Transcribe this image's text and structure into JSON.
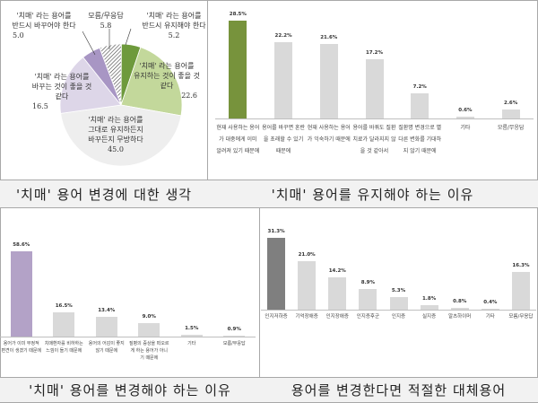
{
  "chart_data": [
    {
      "type": "pie",
      "title": "'치매' 용어 변경에 대한 생각",
      "unit": "%",
      "slices": [
        {
          "label": "'치매' 라는 용어를 반드시 유지해야 한다",
          "value": 5.2,
          "color": "#6e9a3c"
        },
        {
          "label": "'치매' 라는 용어를 유지하는 것이 좋을 것 같다",
          "value": 22.6,
          "color": "#c3d89b"
        },
        {
          "label": "'치매' 라는 용어를 그대로 유지하든지 바꾸든지 무방하다",
          "value": 45.0,
          "color": "#eeeeee"
        },
        {
          "label": "'치매' 라는 용어를 바꾸는 것이 좋을 것 같다",
          "value": 16.5,
          "color": "#ddd6e8"
        },
        {
          "label": "'치매' 라는 용어를 반드시 바꾸어야 한다",
          "value": 5.0,
          "color": "#a896c4"
        },
        {
          "label": "모름/무응답",
          "value": 5.8,
          "color": "hatched"
        }
      ]
    },
    {
      "type": "bar",
      "title": "'치매' 용어를 유지해야 하는 이유",
      "categories": [
        "현재 사용하는 용어가 대중에게 이미 알려져 있기 때문에",
        "용어를 바꾸면 혼란을 초래할 수 있기 때문에",
        "현재 사용하는 용어가 익숙하기 때문에",
        "용어를 바꿔도 질환 치료가 달라지지 않을 것 같아서",
        "질환명 변경으로 별다른 변화를 기대하지 않기 때문에",
        "기타",
        "모름/무응답"
      ],
      "values": [
        28.5,
        22.2,
        21.6,
        17.2,
        7.2,
        0.6,
        2.6
      ],
      "value_labels": [
        "28.5%",
        "22.2%",
        "21.6%",
        "17.2%",
        "7.2%",
        "0.6%",
        "2.6%"
      ],
      "highlight_color": "#77933c",
      "bar_color": "#d9d9d9"
    },
    {
      "type": "bar",
      "title": "'치매' 용어를 변경해야 하는 이유",
      "categories": [
        "용어가 이미 부정적 편견이 생겼기 때문에",
        "치매환자를 비하하는 느낌이 들기 때문에",
        "용어의 어감이 좋지 않기 때문에",
        "질병의 증상을 떠오르게 하는 용어가 아니기 때문에",
        "기타",
        "모름/무응답"
      ],
      "values": [
        58.6,
        16.5,
        13.4,
        9.0,
        1.5,
        0.9
      ],
      "value_labels": [
        "58.6%",
        "16.5%",
        "13.4%",
        "9.0%",
        "1.5%",
        "0.9%"
      ],
      "highlight_color": "#b3a2c7",
      "bar_color": "#d9d9d9"
    },
    {
      "type": "bar",
      "title": "용어를 변경한다면 적절한 대체용어",
      "categories": [
        "인지저하증",
        "기억장애증",
        "인지장애증",
        "인지증후군",
        "인지증",
        "실지증",
        "알츠하이머",
        "기타",
        "모름/무응답"
      ],
      "values": [
        31.3,
        21.0,
        14.2,
        8.9,
        5.3,
        1.8,
        0.8,
        0.4,
        16.3
      ],
      "value_labels": [
        "31.3%",
        "21.0%",
        "14.2%",
        "8.9%",
        "5.3%",
        "1.8%",
        "0.8%",
        "0.4%",
        "16.3%"
      ],
      "highlight_color": "#7f7f7f",
      "bar_color": "#d9d9d9"
    }
  ],
  "pie_labels": [
    {
      "lines": "'치매' 라는 용어를\n반드시 유지해야 한다",
      "value": "5.2"
    },
    {
      "lines": "'치매' 라는 용어를\n유지하는 것이 좋을 것\n같다",
      "value": "22.6"
    },
    {
      "lines": "'치매' 라는 용어를\n그대로 유지하든지\n바꾸든지 무방하다",
      "value": "45.0"
    },
    {
      "lines": "'치매' 라는 용어를\n바꾸는 것이 좋을 것\n같다",
      "value": "16.5"
    },
    {
      "lines": "'치매' 라는 용어를\n반드시 바꾸어야 한다",
      "value": "5.0"
    },
    {
      "lines": "모름/무응답",
      "value": "5.8"
    }
  ],
  "captions": {
    "top_left": "'치매' 용어 변경에 대한 생각",
    "top_right": "'치매' 용어를 유지해야 하는 이유",
    "bottom_left": "'치매' 용어를 변경해야 하는 이유",
    "bottom_right": "용어를 변경한다면 적절한 대체용어"
  }
}
